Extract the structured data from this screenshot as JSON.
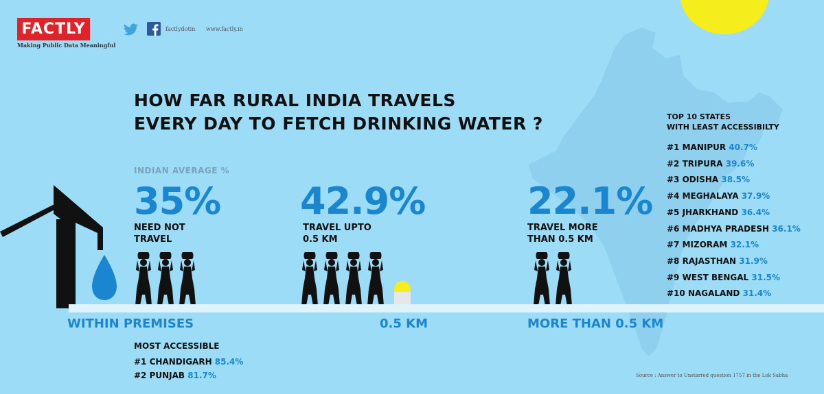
{
  "brand": {
    "logo": "FACTLY",
    "tagline": "Making Public Data Meaningful"
  },
  "social": {
    "handle": "factlydotin",
    "site": "www.factly.in"
  },
  "title": {
    "line1": "HOW FAR RURAL INDIA TRAVELS",
    "line2": "EVERY DAY TO FETCH DRINKING WATER ?"
  },
  "average_label": "INDIAN AVERAGE %",
  "stats": [
    {
      "value": "35%",
      "line1": "NEED NOT",
      "line2": "TRAVEL",
      "people": 3
    },
    {
      "value": "42.9%",
      "line1": "TRAVEL UPTO",
      "line2": "0.5 KM",
      "people": 4
    },
    {
      "value": "22.1%",
      "line1": "TRAVEL MORE",
      "line2": "THAN 0.5 KM",
      "people": 2
    }
  ],
  "categories": [
    "WITHIN PREMISES",
    "0.5 KM",
    "MORE THAN 0.5 KM"
  ],
  "least_accessible": {
    "title1": "TOP 10 STATES",
    "title2": "WITH LEAST ACCESSIBILTY",
    "items": [
      {
        "rank": "#1",
        "name": "MANIPUR",
        "value": "40.7%"
      },
      {
        "rank": "#2",
        "name": "TRIPURA",
        "value": "39.6%"
      },
      {
        "rank": "#3",
        "name": "ODISHA",
        "value": "38.5%"
      },
      {
        "rank": "#4",
        "name": "MEGHALAYA",
        "value": "37.9%"
      },
      {
        "rank": "#5",
        "name": "JHARKHAND",
        "value": "36.4%"
      },
      {
        "rank": "#6",
        "name": "MADHYA PRADESH",
        "value": "36.1%"
      },
      {
        "rank": "#7",
        "name": "MIZORAM",
        "value": "32.1%"
      },
      {
        "rank": "#8",
        "name": "RAJASTHAN",
        "value": "31.9%"
      },
      {
        "rank": "#9",
        "name": "WEST BENGAL",
        "value": "31.5%"
      },
      {
        "rank": "#10",
        "name": "NAGALAND",
        "value": "31.4%"
      }
    ]
  },
  "most_accessible": {
    "title": "MOST ACCESSIBLE",
    "items": [
      {
        "rank": "#1",
        "name": "CHANDIGARH",
        "value": "85.4%"
      },
      {
        "rank": "#2",
        "name": "PUNJAB",
        "value": "81.7%"
      }
    ]
  },
  "source": "Source : Answer to Unstarred question 1757 in the Lok Sabha",
  "colors": {
    "background": "#9cdcf6",
    "accent": "#1a86cf",
    "logo": "#e0232a",
    "sun": "#f6ee1c",
    "map": "#8fd0ee"
  }
}
